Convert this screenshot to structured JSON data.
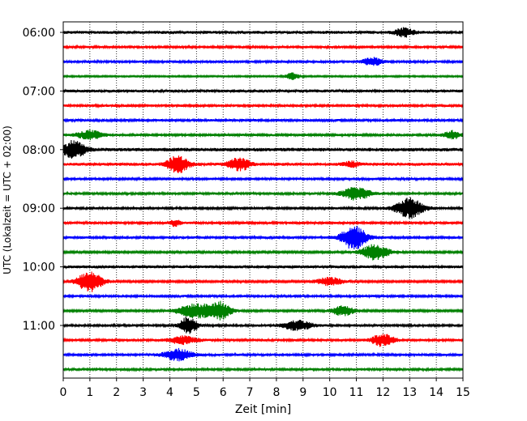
{
  "chart_data": {
    "type": "line",
    "title": "",
    "xlabel": "Zeit  [min]",
    "ylabel": "UTC (Lokalzeit = UTC + 02:00)",
    "xlim": [
      0,
      15
    ],
    "x_ticks": [
      0,
      1,
      2,
      3,
      4,
      5,
      6,
      7,
      8,
      9,
      10,
      11,
      12,
      13,
      14,
      15
    ],
    "y_tick_labels": [
      "06:00",
      "07:00",
      "08:00",
      "09:00",
      "10:00",
      "11:00"
    ],
    "grid": "vertical dotted",
    "trace_colors": [
      "#000000",
      "#ff0000",
      "#0000ff",
      "#008000"
    ],
    "series": [
      {
        "name": "06:00",
        "color": "#000000",
        "amp": 0.3,
        "events": [
          [
            12.8,
            0.35,
            0.9
          ]
        ]
      },
      {
        "name": "06:15",
        "color": "#ff0000",
        "amp": 0.25,
        "events": []
      },
      {
        "name": "06:30",
        "color": "#0000ff",
        "amp": 0.25,
        "events": [
          [
            11.6,
            0.35,
            0.8
          ]
        ]
      },
      {
        "name": "06:45",
        "color": "#008000",
        "amp": 0.15,
        "events": [
          [
            8.6,
            0.25,
            0.7
          ]
        ]
      },
      {
        "name": "07:00",
        "color": "#000000",
        "amp": 0.3,
        "events": []
      },
      {
        "name": "07:15",
        "color": "#ff0000",
        "amp": 0.25,
        "events": []
      },
      {
        "name": "07:30",
        "color": "#0000ff",
        "amp": 0.25,
        "events": []
      },
      {
        "name": "07:45",
        "color": "#008000",
        "amp": 0.25,
        "events": [
          [
            1.0,
            0.45,
            0.9
          ],
          [
            14.6,
            0.3,
            0.8
          ]
        ]
      },
      {
        "name": "08:00",
        "color": "#000000",
        "amp": 0.35,
        "events": [
          [
            0.4,
            0.4,
            1.8
          ]
        ]
      },
      {
        "name": "08:15",
        "color": "#ff0000",
        "amp": 0.3,
        "events": [
          [
            4.3,
            0.4,
            1.7
          ],
          [
            6.6,
            0.4,
            1.3
          ],
          [
            10.8,
            0.3,
            0.5
          ]
        ]
      },
      {
        "name": "08:30",
        "color": "#0000ff",
        "amp": 0.25,
        "events": []
      },
      {
        "name": "08:45",
        "color": "#008000",
        "amp": 0.25,
        "events": [
          [
            11.0,
            0.5,
            1.3
          ]
        ]
      },
      {
        "name": "09:00",
        "color": "#000000",
        "amp": 0.25,
        "events": [
          [
            13.0,
            0.5,
            2.0
          ]
        ]
      },
      {
        "name": "09:15",
        "color": "#ff0000",
        "amp": 0.25,
        "events": [
          [
            4.2,
            0.2,
            0.6
          ]
        ]
      },
      {
        "name": "09:30",
        "color": "#0000ff",
        "amp": 0.25,
        "events": [
          [
            10.9,
            0.45,
            2.5
          ]
        ]
      },
      {
        "name": "09:45",
        "color": "#008000",
        "amp": 0.2,
        "events": [
          [
            11.7,
            0.5,
            1.6
          ]
        ]
      },
      {
        "name": "10:00",
        "color": "#000000",
        "amp": 0.3,
        "events": []
      },
      {
        "name": "10:15",
        "color": "#ff0000",
        "amp": 0.2,
        "events": [
          [
            1.0,
            0.45,
            2.2
          ],
          [
            10.0,
            0.5,
            0.8
          ]
        ]
      },
      {
        "name": "10:30",
        "color": "#0000ff",
        "amp": 0.25,
        "events": []
      },
      {
        "name": "10:45",
        "color": "#008000",
        "amp": 0.2,
        "events": [
          [
            5.0,
            0.7,
            1.4
          ],
          [
            5.9,
            0.4,
            1.6
          ],
          [
            10.5,
            0.4,
            1.0
          ]
        ]
      },
      {
        "name": "11:00",
        "color": "#000000",
        "amp": 0.25,
        "events": [
          [
            4.7,
            0.3,
            1.8
          ],
          [
            8.8,
            0.5,
            1.0
          ]
        ]
      },
      {
        "name": "11:15",
        "color": "#ff0000",
        "amp": 0.25,
        "events": [
          [
            4.5,
            0.5,
            0.8
          ],
          [
            12.0,
            0.4,
            1.3
          ]
        ]
      },
      {
        "name": "11:30",
        "color": "#0000ff",
        "amp": 0.25,
        "events": [
          [
            4.3,
            0.5,
            1.2
          ]
        ]
      },
      {
        "name": "11:45",
        "color": "#008000",
        "amp": 0.25,
        "events": []
      }
    ]
  }
}
